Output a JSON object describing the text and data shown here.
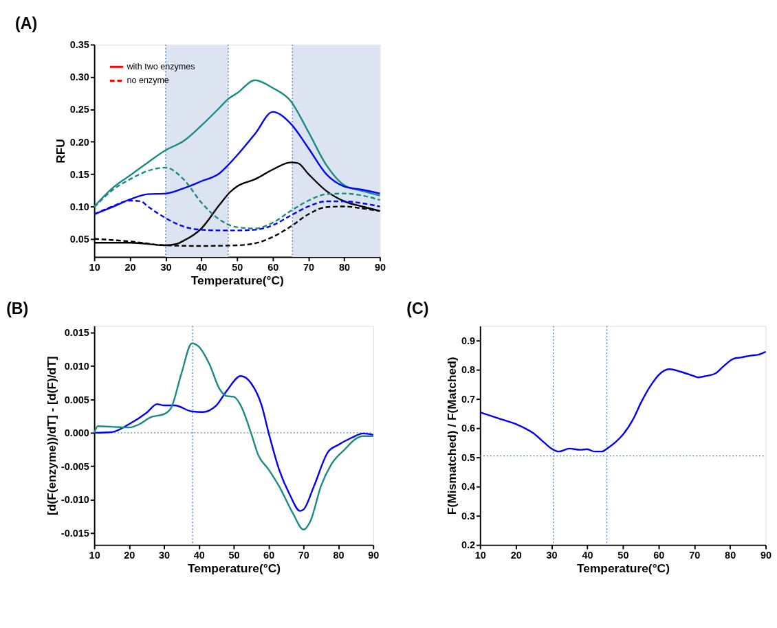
{
  "chart_data": [
    {
      "type": "line",
      "title": "(A)",
      "xlabel": "Temperature(°C)",
      "ylabel": "RFU",
      "xlim": [
        10,
        90
      ],
      "xticks": [
        10,
        20,
        30,
        40,
        50,
        60,
        70,
        80,
        90
      ],
      "ylim": [
        0.022,
        0.35
      ],
      "yticks": [
        {
          "value": 0.05,
          "label": "0.05"
        },
        {
          "value": 0.1,
          "label": "0.10"
        },
        {
          "value": 0.15,
          "label": "0.15"
        },
        {
          "value": 0.2,
          "label": "0.20"
        },
        {
          "value": 0.25,
          "label": "0.25"
        },
        {
          "value": 0.3,
          "label": "0.30"
        },
        {
          "value": 0.35,
          "label": "0.35"
        }
      ],
      "grid": false,
      "legend": "top left",
      "bands": [
        {
          "axis": "x",
          "from": 30,
          "to": 47.5,
          "color": "#dbe4f0"
        },
        {
          "axis": "x",
          "from": 65.5,
          "to": 90,
          "color": "#dbe4f0"
        }
      ],
      "ref_lines": [
        {
          "axis": "x",
          "value": 30,
          "color": "#4a86c8",
          "line_style": "dotted"
        },
        {
          "axis": "x",
          "value": 47.5,
          "color": "#4a86c8",
          "line_style": "dotted"
        },
        {
          "axis": "x",
          "value": 65.5,
          "color": "#4a86c8",
          "line_style": "dotted"
        }
      ],
      "series": [
        {
          "name": "with two enzymes",
          "color": "#ff0000",
          "line_style": "solid"
        },
        {
          "name": "no enzyme",
          "color": "#ff0000",
          "line_style": "dashed"
        },
        {
          "color": "#1b8a87",
          "line_style": "solid",
          "x": [
            10,
            15,
            20,
            25,
            30,
            35,
            40,
            45,
            47.5,
            50,
            55,
            60,
            65,
            70,
            75,
            80,
            85,
            90
          ],
          "values": [
            0.1,
            0.128,
            0.148,
            0.168,
            0.187,
            0.201,
            0.225,
            0.252,
            0.266,
            0.275,
            0.295,
            0.283,
            0.263,
            0.215,
            0.164,
            0.133,
            0.124,
            0.117
          ]
        },
        {
          "color": "#0000ff",
          "line_style": "solid",
          "x": [
            10,
            15,
            20,
            25,
            30,
            35,
            40,
            45,
            47.5,
            50,
            55,
            60,
            65,
            70,
            75,
            80,
            85,
            90
          ],
          "values": [
            0.088,
            0.099,
            0.111,
            0.119,
            0.12,
            0.128,
            0.139,
            0.151,
            0.164,
            0.179,
            0.212,
            0.246,
            0.228,
            0.19,
            0.15,
            0.131,
            0.126,
            0.12
          ]
        },
        {
          "color": "#000000",
          "line_style": "solid",
          "x": [
            10,
            20,
            30,
            33,
            35,
            40,
            45,
            48,
            50,
            55,
            60,
            65,
            67,
            70,
            75,
            80,
            85,
            90
          ],
          "values": [
            0.044,
            0.044,
            0.04,
            0.042,
            0.047,
            0.066,
            0.102,
            0.122,
            0.131,
            0.142,
            0.157,
            0.168,
            0.167,
            0.15,
            0.124,
            0.108,
            0.1,
            0.093
          ]
        },
        {
          "color": "#1b8a87",
          "line_style": "dashed",
          "x": [
            10,
            15,
            20,
            25,
            30,
            35,
            40,
            45,
            50,
            55,
            60,
            65,
            70,
            75,
            80,
            85,
            90
          ],
          "values": [
            0.099,
            0.125,
            0.142,
            0.155,
            0.16,
            0.142,
            0.106,
            0.08,
            0.068,
            0.066,
            0.075,
            0.093,
            0.109,
            0.119,
            0.12,
            0.117,
            0.11
          ]
        },
        {
          "color": "#0000ff",
          "line_style": "dashed",
          "x": [
            10,
            15,
            20,
            23,
            25,
            30,
            35,
            40,
            45,
            50,
            55,
            60,
            65,
            70,
            75,
            80,
            85,
            90
          ],
          "values": [
            0.088,
            0.1,
            0.109,
            0.108,
            0.1,
            0.082,
            0.069,
            0.064,
            0.063,
            0.063,
            0.064,
            0.071,
            0.086,
            0.1,
            0.108,
            0.108,
            0.105,
            0.1
          ]
        },
        {
          "color": "#000000",
          "line_style": "dashed",
          "x": [
            10,
            20,
            30,
            40,
            50,
            55,
            60,
            65,
            70,
            75,
            80,
            85,
            90
          ],
          "values": [
            0.05,
            0.046,
            0.04,
            0.039,
            0.04,
            0.043,
            0.053,
            0.069,
            0.088,
            0.099,
            0.1,
            0.097,
            0.093
          ]
        }
      ]
    },
    {
      "type": "line",
      "title": "(B)",
      "xlabel": "Temperature(°C)",
      "ylabel": "[d(F(enzyme))/dT] - [d(F)/dT]",
      "xlim": [
        10,
        90
      ],
      "xticks": [
        10,
        20,
        30,
        40,
        50,
        60,
        70,
        80,
        90
      ],
      "ylim": [
        -0.0168,
        0.016
      ],
      "yticks": [
        {
          "value": -0.015,
          "label": "-0.015"
        },
        {
          "value": -0.01,
          "label": "-0.010"
        },
        {
          "value": -0.005,
          "label": "-0.005"
        },
        {
          "value": 0,
          "label": "0.000"
        },
        {
          "value": 0.005,
          "label": "0.005"
        },
        {
          "value": 0.01,
          "label": "0.010"
        },
        {
          "value": 0.015,
          "label": "0.015"
        }
      ],
      "grid": false,
      "ref_lines": [
        {
          "axis": "x",
          "value": 38.2,
          "color": "#4a86c8",
          "line_style": "dotted"
        },
        {
          "axis": "y",
          "value": 0,
          "color": "#4a86c8",
          "line_style": "dotted"
        }
      ],
      "series": [
        {
          "color": "#0000ff",
          "line_style": "solid",
          "x": [
            10,
            15,
            20,
            25,
            28,
            30,
            33,
            38,
            41,
            45,
            48,
            52,
            55,
            58,
            60,
            63,
            66,
            69,
            70,
            73,
            77,
            80,
            84,
            87,
            90
          ],
          "values": [
            0,
            0.0001,
            0.0013,
            0.003,
            0.0043,
            0.0041,
            0.0041,
            0.0032,
            0.0031,
            0.0041,
            0.0063,
            0.0085,
            0.0074,
            0.0041,
            0.0,
            -0.0055,
            -0.0092,
            -0.0117,
            -0.0115,
            -0.008,
            -0.0029,
            -0.0018,
            -0.0007,
            -0.0001,
            -0.0003
          ]
        },
        {
          "color": "#1b8a87",
          "line_style": "solid",
          "x": [
            10,
            11,
            15,
            20,
            23,
            26,
            30,
            32,
            35,
            38,
            40,
            43,
            46,
            48,
            50,
            52,
            55,
            57,
            60,
            63,
            67,
            70,
            72,
            75,
            78,
            82,
            85,
            87,
            90
          ],
          "values": [
            0,
            0.001,
            0.0009,
            0.0008,
            0.0013,
            0.0023,
            0.0028,
            0.0037,
            0.0089,
            0.0134,
            0.0129,
            0.0103,
            0.0065,
            0.0055,
            0.0054,
            0.0041,
            -0.0001,
            -0.0033,
            -0.0055,
            -0.008,
            -0.0121,
            -0.0145,
            -0.0132,
            -0.008,
            -0.0047,
            -0.0024,
            -0.0009,
            -0.0005,
            -0.0005
          ]
        }
      ]
    },
    {
      "type": "line",
      "title": "(C)",
      "xlabel": "Temperature(°C)",
      "ylabel": "F(Mismatched) / F(Matched)",
      "xlim": [
        10,
        90
      ],
      "xticks": [
        10,
        20,
        30,
        40,
        50,
        60,
        70,
        80,
        90
      ],
      "ylim": [
        0.2,
        0.95
      ],
      "yticks": [
        0.2,
        0.3,
        0.4,
        0.5,
        0.6,
        0.7,
        0.8,
        0.9
      ],
      "grid": false,
      "ref_lines": [
        {
          "axis": "x",
          "value": 30.5,
          "color": "#4a86c8",
          "line_style": "dotted"
        },
        {
          "axis": "x",
          "value": 45.5,
          "color": "#4a86c8",
          "line_style": "dotted"
        },
        {
          "axis": "y",
          "value": 0.505,
          "color": "#4a86c8",
          "line_style": "dotted"
        }
      ],
      "series": [
        {
          "color": "#0000ff",
          "line_style": "solid",
          "x": [
            10,
            15,
            20,
            25,
            28,
            30,
            32,
            35,
            38,
            40,
            42,
            44,
            46,
            48,
            50,
            53,
            55,
            58,
            60,
            63,
            66,
            70,
            71,
            73,
            76,
            78,
            81,
            83,
            86,
            88,
            90
          ],
          "values": [
            0.654,
            0.634,
            0.614,
            0.582,
            0.55,
            0.53,
            0.52,
            0.53,
            0.526,
            0.528,
            0.52,
            0.52,
            0.534,
            0.553,
            0.578,
            0.634,
            0.686,
            0.75,
            0.782,
            0.802,
            0.794,
            0.778,
            0.774,
            0.778,
            0.788,
            0.81,
            0.838,
            0.842,
            0.849,
            0.852,
            0.862
          ]
        }
      ]
    }
  ]
}
